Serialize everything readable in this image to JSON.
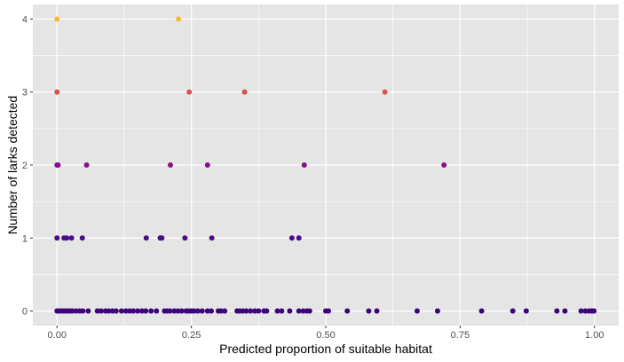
{
  "chart_data": {
    "type": "scatter",
    "title": "",
    "xlabel": "Predicted proportion of suitable habitat",
    "ylabel": "Number of larks detected",
    "xlim": [
      -0.045,
      1.045
    ],
    "ylim": [
      -0.2,
      4.2
    ],
    "x_ticks": [
      0.0,
      0.25,
      0.5,
      0.75,
      1.0
    ],
    "x_tick_labels": [
      "0.00",
      "0.25",
      "0.50",
      "0.75",
      "1.00"
    ],
    "y_ticks": [
      0,
      1,
      2,
      3,
      4
    ],
    "y_tick_labels": [
      "0",
      "1",
      "2",
      "3",
      "4"
    ],
    "grid": true,
    "legend": "none",
    "colors": {
      "panel_bg": "#e5e5e5",
      "grid_major": "#ffffff",
      "count_0": "#3f007d",
      "count_1": "#4b0c8a",
      "count_2": "#8a0f8c",
      "count_3": "#d9534a",
      "count_4": "#f5b937"
    },
    "points": [
      {
        "x": 0.0,
        "y": 4
      },
      {
        "x": 0.226,
        "y": 4
      },
      {
        "x": 0.0,
        "y": 3
      },
      {
        "x": 0.246,
        "y": 3
      },
      {
        "x": 0.349,
        "y": 3
      },
      {
        "x": 0.61,
        "y": 3
      },
      {
        "x": 0.0,
        "y": 2
      },
      {
        "x": 0.002,
        "y": 2
      },
      {
        "x": 0.055,
        "y": 2
      },
      {
        "x": 0.211,
        "y": 2
      },
      {
        "x": 0.28,
        "y": 2
      },
      {
        "x": 0.46,
        "y": 2
      },
      {
        "x": 0.72,
        "y": 2
      },
      {
        "x": 0.0,
        "y": 1
      },
      {
        "x": 0.013,
        "y": 1
      },
      {
        "x": 0.018,
        "y": 1
      },
      {
        "x": 0.027,
        "y": 1
      },
      {
        "x": 0.047,
        "y": 1
      },
      {
        "x": 0.166,
        "y": 1
      },
      {
        "x": 0.192,
        "y": 1
      },
      {
        "x": 0.195,
        "y": 1
      },
      {
        "x": 0.238,
        "y": 1
      },
      {
        "x": 0.288,
        "y": 1
      },
      {
        "x": 0.437,
        "y": 1
      },
      {
        "x": 0.45,
        "y": 1
      },
      {
        "x": 0.0,
        "y": 0
      },
      {
        "x": 0.004,
        "y": 0
      },
      {
        "x": 0.008,
        "y": 0
      },
      {
        "x": 0.012,
        "y": 0
      },
      {
        "x": 0.016,
        "y": 0
      },
      {
        "x": 0.02,
        "y": 0
      },
      {
        "x": 0.024,
        "y": 0
      },
      {
        "x": 0.028,
        "y": 0
      },
      {
        "x": 0.035,
        "y": 0
      },
      {
        "x": 0.042,
        "y": 0
      },
      {
        "x": 0.048,
        "y": 0
      },
      {
        "x": 0.058,
        "y": 0
      },
      {
        "x": 0.075,
        "y": 0
      },
      {
        "x": 0.082,
        "y": 0
      },
      {
        "x": 0.09,
        "y": 0
      },
      {
        "x": 0.096,
        "y": 0
      },
      {
        "x": 0.103,
        "y": 0
      },
      {
        "x": 0.11,
        "y": 0
      },
      {
        "x": 0.12,
        "y": 0
      },
      {
        "x": 0.128,
        "y": 0
      },
      {
        "x": 0.135,
        "y": 0
      },
      {
        "x": 0.142,
        "y": 0
      },
      {
        "x": 0.15,
        "y": 0
      },
      {
        "x": 0.158,
        "y": 0
      },
      {
        "x": 0.165,
        "y": 0
      },
      {
        "x": 0.175,
        "y": 0
      },
      {
        "x": 0.185,
        "y": 0
      },
      {
        "x": 0.2,
        "y": 0
      },
      {
        "x": 0.205,
        "y": 0
      },
      {
        "x": 0.21,
        "y": 0
      },
      {
        "x": 0.218,
        "y": 0
      },
      {
        "x": 0.225,
        "y": 0
      },
      {
        "x": 0.232,
        "y": 0
      },
      {
        "x": 0.24,
        "y": 0
      },
      {
        "x": 0.245,
        "y": 0
      },
      {
        "x": 0.25,
        "y": 0
      },
      {
        "x": 0.255,
        "y": 0
      },
      {
        "x": 0.262,
        "y": 0
      },
      {
        "x": 0.27,
        "y": 0
      },
      {
        "x": 0.28,
        "y": 0
      },
      {
        "x": 0.287,
        "y": 0
      },
      {
        "x": 0.3,
        "y": 0
      },
      {
        "x": 0.305,
        "y": 0
      },
      {
        "x": 0.312,
        "y": 0
      },
      {
        "x": 0.335,
        "y": 0
      },
      {
        "x": 0.34,
        "y": 0
      },
      {
        "x": 0.346,
        "y": 0
      },
      {
        "x": 0.352,
        "y": 0
      },
      {
        "x": 0.36,
        "y": 0
      },
      {
        "x": 0.368,
        "y": 0
      },
      {
        "x": 0.375,
        "y": 0
      },
      {
        "x": 0.385,
        "y": 0
      },
      {
        "x": 0.39,
        "y": 0
      },
      {
        "x": 0.41,
        "y": 0
      },
      {
        "x": 0.418,
        "y": 0
      },
      {
        "x": 0.433,
        "y": 0
      },
      {
        "x": 0.45,
        "y": 0
      },
      {
        "x": 0.458,
        "y": 0
      },
      {
        "x": 0.465,
        "y": 0
      },
      {
        "x": 0.47,
        "y": 0
      },
      {
        "x": 0.5,
        "y": 0
      },
      {
        "x": 0.505,
        "y": 0
      },
      {
        "x": 0.54,
        "y": 0
      },
      {
        "x": 0.58,
        "y": 0
      },
      {
        "x": 0.595,
        "y": 0
      },
      {
        "x": 0.67,
        "y": 0
      },
      {
        "x": 0.708,
        "y": 0
      },
      {
        "x": 0.79,
        "y": 0
      },
      {
        "x": 0.848,
        "y": 0
      },
      {
        "x": 0.873,
        "y": 0
      },
      {
        "x": 0.93,
        "y": 0
      },
      {
        "x": 0.945,
        "y": 0
      },
      {
        "x": 0.975,
        "y": 0
      },
      {
        "x": 0.983,
        "y": 0
      },
      {
        "x": 0.99,
        "y": 0
      },
      {
        "x": 0.995,
        "y": 0
      },
      {
        "x": 0.999,
        "y": 0
      }
    ]
  }
}
